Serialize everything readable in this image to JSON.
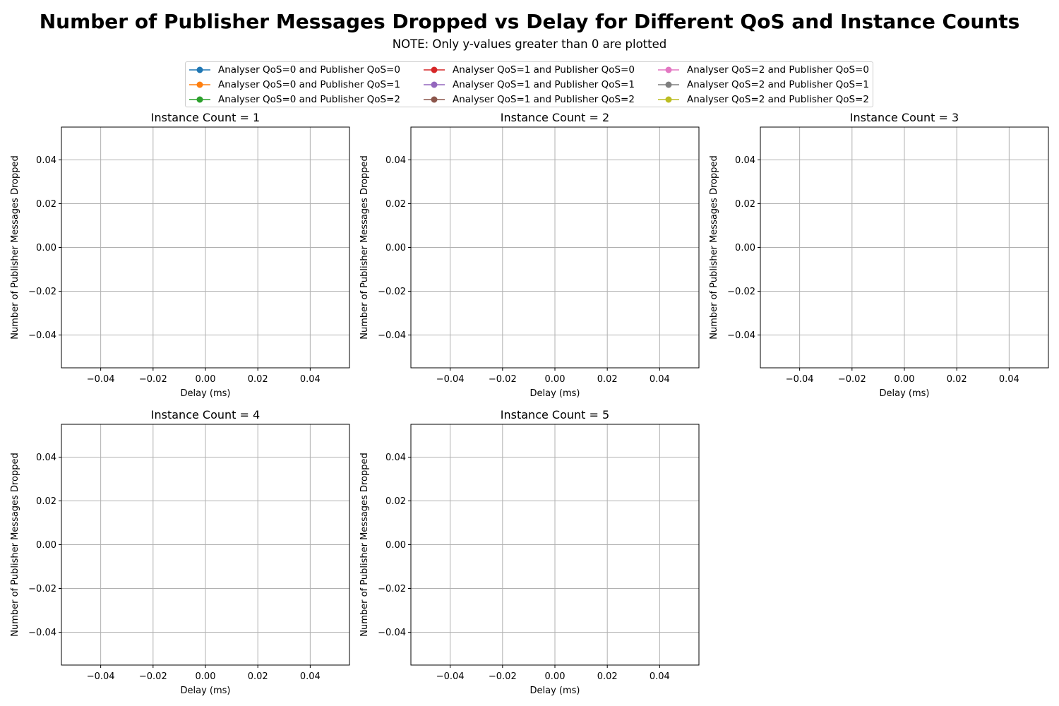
{
  "title": "Number of Publisher Messages Dropped vs Delay for Different QoS and Instance Counts",
  "subtitle": "NOTE: Only y-values greater than 0 are plotted",
  "legend": [
    {
      "label": "Analyser QoS=0 and Publisher QoS=0",
      "color": "#1f77b4"
    },
    {
      "label": "Analyser QoS=0 and Publisher QoS=1",
      "color": "#ff7f0e"
    },
    {
      "label": "Analyser QoS=0 and Publisher QoS=2",
      "color": "#2ca02c"
    },
    {
      "label": "Analyser QoS=1 and Publisher QoS=0",
      "color": "#d62728"
    },
    {
      "label": "Analyser QoS=1 and Publisher QoS=1",
      "color": "#9467bd"
    },
    {
      "label": "Analyser QoS=1 and Publisher QoS=2",
      "color": "#8c564b"
    },
    {
      "label": "Analyser QoS=2 and Publisher QoS=0",
      "color": "#e377c2"
    },
    {
      "label": "Analyser QoS=2 and Publisher QoS=1",
      "color": "#7f7f7f"
    },
    {
      "label": "Analyser QoS=2 and Publisher QoS=2",
      "color": "#bcbd22"
    }
  ],
  "chart_data": [
    {
      "type": "line",
      "title": "Instance Count = 1",
      "xlabel": "Delay (ms)",
      "ylabel": "Number of Publisher Messages Dropped",
      "xlim": [
        -0.055,
        0.055
      ],
      "ylim": [
        -0.055,
        0.055
      ],
      "xticks": [
        "−0.04",
        "−0.02",
        "0.00",
        "0.02",
        "0.04"
      ],
      "yticks": [
        "−0.04",
        "−0.02",
        "0.00",
        "0.02",
        "0.04"
      ],
      "grid": true,
      "series": []
    },
    {
      "type": "line",
      "title": "Instance Count = 2",
      "xlabel": "Delay (ms)",
      "ylabel": "Number of Publisher Messages Dropped",
      "xlim": [
        -0.055,
        0.055
      ],
      "ylim": [
        -0.055,
        0.055
      ],
      "xticks": [
        "−0.04",
        "−0.02",
        "0.00",
        "0.02",
        "0.04"
      ],
      "yticks": [
        "−0.04",
        "−0.02",
        "0.00",
        "0.02",
        "0.04"
      ],
      "grid": true,
      "series": []
    },
    {
      "type": "line",
      "title": "Instance Count = 3",
      "xlabel": "Delay (ms)",
      "ylabel": "Number of Publisher Messages Dropped",
      "xlim": [
        -0.055,
        0.055
      ],
      "ylim": [
        -0.055,
        0.055
      ],
      "xticks": [
        "−0.04",
        "−0.02",
        "0.00",
        "0.02",
        "0.04"
      ],
      "yticks": [
        "−0.04",
        "−0.02",
        "0.00",
        "0.02",
        "0.04"
      ],
      "grid": true,
      "series": []
    },
    {
      "type": "line",
      "title": "Instance Count = 4",
      "xlabel": "Delay (ms)",
      "ylabel": "Number of Publisher Messages Dropped",
      "xlim": [
        -0.055,
        0.055
      ],
      "ylim": [
        -0.055,
        0.055
      ],
      "xticks": [
        "−0.04",
        "−0.02",
        "0.00",
        "0.02",
        "0.04"
      ],
      "yticks": [
        "−0.04",
        "−0.02",
        "0.00",
        "0.02",
        "0.04"
      ],
      "grid": true,
      "series": []
    },
    {
      "type": "line",
      "title": "Instance Count = 5",
      "xlabel": "Delay (ms)",
      "ylabel": "Number of Publisher Messages Dropped",
      "xlim": [
        -0.055,
        0.055
      ],
      "ylim": [
        -0.055,
        0.055
      ],
      "xticks": [
        "−0.04",
        "−0.02",
        "0.00",
        "0.02",
        "0.04"
      ],
      "yticks": [
        "−0.04",
        "−0.02",
        "0.00",
        "0.02",
        "0.04"
      ],
      "grid": true,
      "series": []
    }
  ]
}
